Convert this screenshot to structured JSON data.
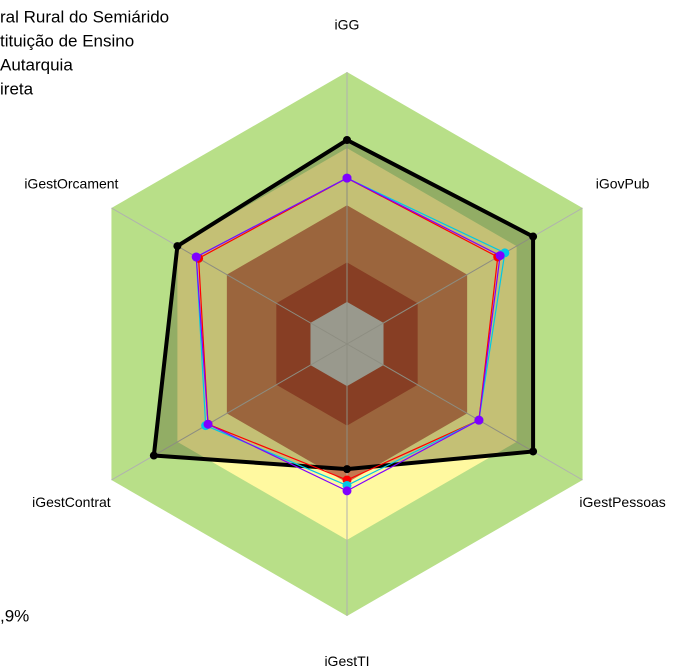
{
  "chart_data": {
    "type": "radar",
    "categories": [
      "iGG",
      "iGovPub",
      "iGestPessoas",
      "iGestTI",
      "iGestContrat",
      "iGestOrcament"
    ],
    "rlim": [
      0,
      1
    ],
    "bands": [
      {
        "value": 1.0,
        "color": "#b8df88"
      },
      {
        "value": 0.72,
        "color": "#fff9a0"
      },
      {
        "value": 0.51,
        "color": "#c5784f"
      },
      {
        "value": 0.3,
        "color": "#a8402c"
      },
      {
        "value": 0.155,
        "color": "#c2c2c2"
      }
    ],
    "series": [
      {
        "name": "ral Rural do Semiárido",
        "color": "#000000",
        "values": [
          0.75,
          0.79,
          0.79,
          0.46,
          0.82,
          0.72
        ]
      },
      {
        "name": "tituição de Ensino",
        "color": "#ff0000",
        "values": [
          0.61,
          0.64,
          0.56,
          0.5,
          0.59,
          0.63
        ]
      },
      {
        "name": "Autarquia",
        "color": "#00c8e6",
        "values": [
          0.61,
          0.67,
          0.56,
          0.52,
          0.6,
          0.64
        ]
      },
      {
        "name": "ireta",
        "color": "#8000ff",
        "values": [
          0.61,
          0.65,
          0.56,
          0.54,
          0.59,
          0.64
        ]
      }
    ],
    "note_text": ",9%"
  }
}
